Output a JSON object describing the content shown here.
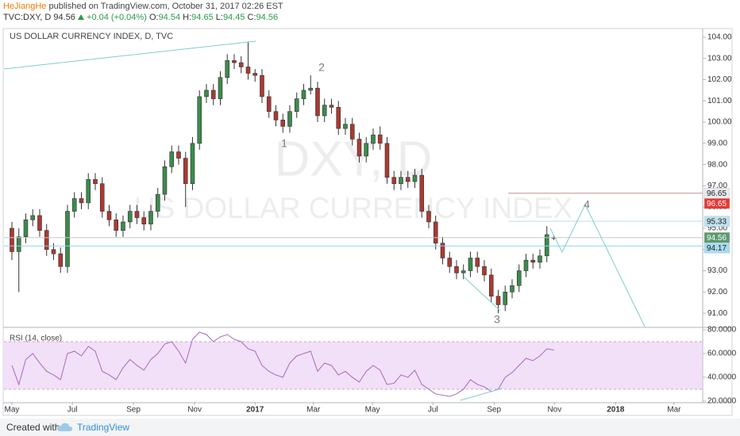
{
  "header": {
    "author": "HeJiangHe",
    "published": " published on TradingView.com, October 31, 2017 02:26 EST",
    "symbol": "TVC:DXY, D",
    "last": 94.56,
    "change": "+0.04 (+0.04%)",
    "ohlc": [
      {
        "label": "O:",
        "value": 94.54
      },
      {
        "label": "H:",
        "value": 94.65
      },
      {
        "label": "L:",
        "value": 94.45
      },
      {
        "label": "C:",
        "value": 94.56
      }
    ]
  },
  "chart_data": {
    "type": "candlestick",
    "title": "US DOLLAR CURRENCY INDEX, D, TVC",
    "watermark": [
      "DXY, D",
      "US DOLLAR CURRENCY INDEX"
    ],
    "up_color": "#3c8a4c",
    "down_color": "#a93a32",
    "open": [
      95.0,
      93.9,
      94.6,
      95.4,
      95.6,
      94.9,
      94.0,
      93.8,
      93.2,
      95.8,
      96.4,
      96.2,
      97.3,
      97.1,
      95.8,
      95.4,
      94.9,
      95.3,
      95.8,
      95.5,
      95.2,
      95.8,
      96.6,
      97.9,
      98.6,
      98.3,
      97.1,
      99.0,
      101.2,
      101.5,
      101.1,
      102.1,
      102.9,
      102.8,
      102.6,
      102.3,
      102.2,
      101.2,
      100.5,
      100.1,
      99.8,
      100.5,
      101.1,
      101.5,
      101.6,
      100.3,
      100.8,
      100.7,
      99.7,
      99.9,
      99.2,
      98.4,
      99.0,
      99.4,
      99.0,
      97.4,
      97.1,
      97.4,
      97.2,
      97.5,
      95.8,
      95.3,
      94.3,
      93.6,
      93.2,
      92.9,
      93.0,
      93.6,
      93.2,
      92.8,
      91.8,
      91.4,
      92.0,
      92.3,
      93.0,
      93.5,
      93.4,
      93.7,
      94.54
    ],
    "high": [
      95.3,
      95.0,
      95.7,
      95.9,
      95.9,
      95.2,
      94.3,
      94.1,
      96.1,
      96.7,
      96.7,
      97.6,
      97.6,
      97.4,
      96.1,
      95.7,
      95.6,
      96.1,
      96.1,
      95.8,
      96.1,
      96.9,
      98.2,
      98.9,
      98.9,
      98.6,
      99.3,
      101.5,
      101.8,
      101.8,
      102.4,
      103.2,
      103.2,
      103.1,
      103.8,
      102.5,
      102.5,
      101.5,
      100.8,
      100.4,
      100.8,
      101.4,
      101.8,
      102.2,
      101.9,
      101.1,
      101.1,
      101.0,
      100.2,
      100.2,
      99.5,
      99.3,
      99.7,
      99.8,
      99.3,
      97.7,
      97.7,
      97.7,
      97.8,
      97.8,
      96.1,
      95.6,
      94.6,
      93.9,
      93.5,
      93.3,
      93.9,
      93.9,
      93.5,
      93.1,
      92.1,
      92.3,
      92.6,
      93.3,
      93.8,
      93.8,
      94.0,
      95.1,
      94.65
    ],
    "low": [
      93.5,
      92.0,
      94.3,
      95.1,
      94.6,
      93.7,
      93.5,
      92.9,
      92.9,
      95.5,
      95.9,
      95.9,
      96.8,
      95.5,
      95.1,
      94.6,
      94.6,
      95.0,
      95.2,
      94.9,
      94.9,
      95.5,
      96.3,
      97.6,
      98.0,
      96.0,
      96.8,
      98.7,
      100.9,
      100.8,
      100.8,
      101.8,
      102.5,
      102.3,
      102.0,
      101.9,
      100.9,
      100.2,
      99.8,
      99.5,
      99.5,
      100.2,
      100.8,
      101.3,
      100.0,
      100.0,
      100.4,
      99.4,
      99.4,
      98.9,
      98.1,
      98.1,
      98.7,
      98.7,
      97.1,
      96.8,
      96.8,
      96.9,
      96.9,
      95.5,
      95.0,
      94.0,
      93.3,
      92.9,
      92.6,
      92.6,
      92.7,
      92.9,
      92.5,
      91.5,
      91.0,
      91.1,
      91.7,
      92.0,
      92.7,
      93.1,
      93.1,
      93.4,
      94.45
    ],
    "close": [
      93.9,
      94.6,
      95.4,
      95.6,
      94.9,
      94.0,
      93.8,
      93.2,
      95.8,
      96.4,
      96.2,
      97.3,
      97.1,
      95.8,
      95.4,
      94.9,
      95.3,
      95.8,
      95.5,
      95.2,
      95.8,
      96.6,
      97.9,
      98.6,
      98.3,
      97.1,
      99.0,
      101.2,
      101.5,
      101.1,
      102.1,
      102.9,
      102.8,
      102.6,
      102.3,
      102.2,
      101.2,
      100.5,
      100.1,
      99.8,
      100.5,
      101.1,
      101.5,
      101.6,
      100.3,
      100.8,
      100.7,
      99.7,
      99.9,
      99.2,
      98.4,
      99.0,
      99.4,
      99.0,
      97.4,
      97.1,
      97.4,
      97.2,
      97.5,
      95.8,
      95.3,
      94.3,
      93.6,
      93.2,
      92.9,
      93.0,
      93.6,
      93.2,
      92.8,
      91.8,
      91.4,
      92.0,
      92.3,
      93.0,
      93.5,
      93.4,
      93.7,
      94.7,
      94.56
    ],
    "xlim": [
      -1.14,
      99.43
    ],
    "xticks": [
      {
        "value": 0,
        "label": "May"
      },
      {
        "value": 8.7,
        "label": "Jul"
      },
      {
        "value": 17.5,
        "label": "Sep"
      },
      {
        "value": 26.3,
        "label": "Nov"
      },
      {
        "value": 35,
        "label": "2017"
      },
      {
        "value": 43.4,
        "label": "Mar"
      },
      {
        "value": 51.9,
        "label": "May"
      },
      {
        "value": 60.6,
        "label": "Jul"
      },
      {
        "value": 69.4,
        "label": "Sep"
      },
      {
        "value": 78.1,
        "label": "Nov"
      },
      {
        "value": 86.9,
        "label": "2018"
      },
      {
        "value": 95.3,
        "label": "Mar"
      }
    ],
    "ylim": [
      90.37,
      104.37
    ],
    "yticks": [
      {
        "value": 91,
        "label": "91.00"
      },
      {
        "value": 92,
        "label": "92.00"
      },
      {
        "value": 93,
        "label": "93.00"
      },
      {
        "value": 94,
        "label": "94.00"
      },
      {
        "value": 95,
        "label": "95.00"
      },
      {
        "value": 96,
        "label": "96.00"
      },
      {
        "value": 97,
        "label": "97.00"
      },
      {
        "value": 98,
        "label": "98.00"
      },
      {
        "value": 99,
        "label": "99.00"
      },
      {
        "value": 100,
        "label": "100.00"
      },
      {
        "value": 101,
        "label": "101.00"
      },
      {
        "value": 102,
        "label": "102.00"
      },
      {
        "value": 103,
        "label": "103.00"
      },
      {
        "value": 104,
        "label": "104.00"
      }
    ],
    "price_tags": [
      {
        "value": 96.65,
        "color": "#e9ebf0",
        "text_color": "#222222",
        "line": "#c98f8f"
      },
      {
        "value": 96.65,
        "color": "#e53935",
        "text_color": "#ffffff",
        "line": "#c98f8f"
      },
      {
        "value": 95.33,
        "color": "#bde3f2",
        "text_color": "#222222",
        "line": "#b9e1ef"
      },
      {
        "value": 94.56,
        "color": "#5b9a6e",
        "text_color": "#ffffff",
        "line": "#c8c8c8"
      },
      {
        "value": 94.17,
        "color": "#a6dcf2",
        "text_color": "#222222",
        "line": "#92d3e8"
      }
    ],
    "annotations": [
      "1",
      "2",
      "3",
      "4"
    ],
    "rsi": {
      "title": "RSI (14, close)",
      "color": "#a868c0",
      "band": [
        30,
        70
      ],
      "band_color": "#e6c7f0",
      "values": [
        50,
        34,
        55,
        60,
        52,
        45,
        42,
        38,
        60,
        62,
        58,
        66,
        62,
        45,
        42,
        38,
        48,
        55,
        50,
        46,
        55,
        60,
        68,
        70,
        62,
        52,
        72,
        78,
        76,
        70,
        74,
        76,
        72,
        70,
        64,
        62,
        50,
        45,
        42,
        40,
        52,
        58,
        60,
        62,
        45,
        52,
        50,
        42,
        45,
        40,
        36,
        45,
        50,
        46,
        34,
        35,
        42,
        40,
        46,
        34,
        30,
        26,
        25,
        24,
        26,
        30,
        38,
        34,
        32,
        28,
        30,
        40,
        44,
        50,
        56,
        54,
        58,
        64,
        63
      ],
      "ylim": [
        19.3,
        82
      ],
      "yticks": [
        {
          "value": 20,
          "label": "20.0000"
        },
        {
          "value": 40,
          "label": "40.0000"
        },
        {
          "value": 60,
          "label": "60.0000"
        },
        {
          "value": 80,
          "label": "80.0000"
        }
      ]
    }
  },
  "footer": {
    "created": "Created with",
    "brand": "TradingView"
  }
}
